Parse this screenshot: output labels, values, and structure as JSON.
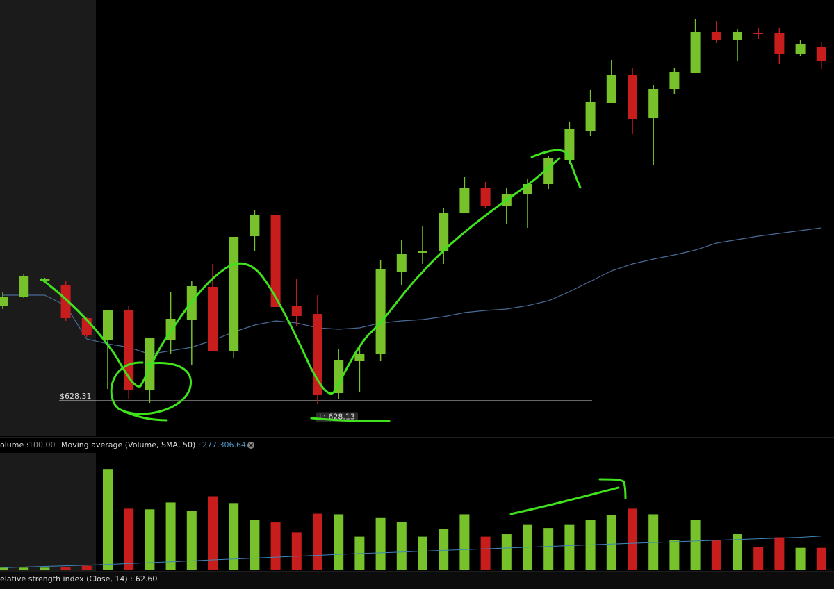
{
  "chart_data": [
    {
      "type": "candlestick",
      "ylim": [
        626.27,
        651.39
      ],
      "up_color": "#77c22b",
      "down_color": "#c81d1d",
      "open": [
        633.79,
        634.27,
        635.23,
        634.99,
        633.07,
        631.79,
        633.55,
        628.91,
        631.79,
        632.99,
        634.87,
        631.19,
        637.79,
        639.03,
        633.79,
        633.31,
        628.75,
        630.59,
        630.99,
        635.71,
        636.83,
        636.91,
        639.11,
        640.55,
        639.51,
        640.19,
        640.79,
        642.19,
        643.87,
        645.43,
        647.07,
        644.59,
        646.27,
        647.19,
        649.55,
        649.11,
        649.51,
        649.51,
        648.27,
        648.71
      ],
      "high": [
        634.59,
        635.63,
        635.39,
        635.19,
        633.15,
        633.51,
        633.79,
        631.91,
        634.59,
        635.19,
        636.19,
        637.75,
        639.31,
        639.03,
        635.31,
        634.39,
        631.27,
        631.51,
        636.39,
        637.59,
        638.39,
        639.39,
        641.19,
        640.91,
        640.59,
        641.07,
        642.39,
        644.35,
        646.19,
        647.91,
        647.47,
        646.51,
        647.47,
        650.31,
        650.19,
        649.71,
        649.79,
        649.79,
        649.07,
        648.99
      ],
      "low": [
        633.59,
        634.23,
        635.15,
        632.91,
        631.99,
        628.99,
        628.39,
        628.19,
        630.99,
        630.39,
        631.19,
        630.79,
        636.91,
        633.71,
        632.59,
        628.13,
        628.39,
        628.79,
        630.59,
        634.99,
        636.19,
        636.19,
        639.11,
        639.39,
        638.47,
        638.27,
        640.51,
        641.95,
        643.55,
        645.43,
        643.67,
        641.87,
        645.99,
        647.19,
        648.91,
        647.87,
        649.15,
        647.71,
        648.19,
        647.39
      ],
      "close": [
        634.27,
        635.51,
        635.31,
        633.07,
        632.07,
        633.51,
        628.91,
        631.91,
        633.03,
        634.91,
        631.19,
        637.75,
        639.03,
        633.71,
        633.19,
        628.67,
        630.63,
        630.99,
        635.91,
        636.75,
        636.91,
        639.15,
        640.55,
        639.51,
        640.23,
        640.79,
        642.27,
        643.95,
        645.51,
        647.07,
        644.51,
        646.27,
        647.23,
        649.55,
        649.07,
        649.55,
        649.43,
        648.27,
        648.83,
        647.87
      ],
      "sma": {
        "color": "#4a6a96",
        "values": [
          634.39,
          634.39,
          634.39,
          633.79,
          631.87,
          631.59,
          631.39,
          630.99,
          631.19,
          631.39,
          631.79,
          632.27,
          632.67,
          632.91,
          632.79,
          632.51,
          632.43,
          632.51,
          632.79,
          632.91,
          632.99,
          633.15,
          633.39,
          633.51,
          633.59,
          633.79,
          634.07,
          634.59,
          635.19,
          635.79,
          636.19,
          636.47,
          636.71,
          636.99,
          637.39,
          637.59,
          637.79,
          637.95,
          638.11,
          638.27
        ]
      },
      "price_line": {
        "value": 628.31,
        "label": "$628.31"
      },
      "low_label": "L: 628.13"
    },
    {
      "type": "bar",
      "label": "olume :",
      "label_value": "100.00",
      "ylim": [
        0,
        965000
      ],
      "values": [
        15400,
        15400,
        15400,
        20500,
        30800,
        831900,
        503200,
        498100,
        554600,
        487800,
        605900,
        549400,
        410800,
        390300,
        308100,
        462200,
        457000,
        272200,
        426200,
        395400,
        272200,
        333800,
        457000,
        272200,
        292700,
        369700,
        344000,
        369700,
        410800,
        451900,
        503200,
        457000,
        246500,
        410800,
        241300,
        292700,
        184900,
        267000,
        179700,
        179700
      ],
      "sma": {
        "name": "Moving average (Volume, SMA, 50) :",
        "value_label": "277,306.64",
        "color": "#3f86b8",
        "values": [
          15400,
          20500,
          25700,
          30800,
          35900,
          42100,
          49800,
          57500,
          64700,
          72400,
          80100,
          87800,
          95000,
          102700,
          110400,
          118100,
          125800,
          132500,
          138600,
          145300,
          152000,
          158700,
          165300,
          171500,
          178200,
          184900,
          191500,
          198200,
          204400,
          211000,
          217200,
          223400,
          230000,
          236200,
          242400,
          248500,
          254700,
          260900,
          267000,
          277306.64
        ]
      }
    },
    {
      "type": "indicator",
      "label": "elative strength index (Close, 14) :",
      "value": 62.6,
      "value_label": "62.60"
    }
  ]
}
